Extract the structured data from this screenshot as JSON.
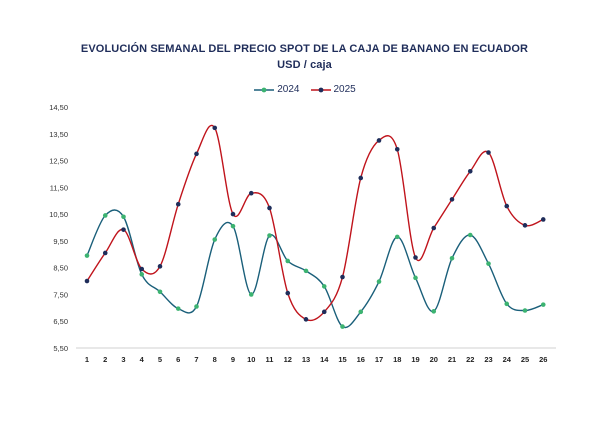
{
  "chart_data": {
    "type": "line",
    "title": "EVOLUCIÓN SEMANAL DEL PRECIO SPOT DE LA CAJA DE BANANO EN ECUADOR",
    "subtitle": "USD / caja",
    "xlabel": "",
    "ylabel": "",
    "legend_position": "top",
    "grid": false,
    "ylim": [
      5.5,
      14.5
    ],
    "y_ticks": [
      "5,50",
      "6,50",
      "7,50",
      "8,50",
      "9,50",
      "10,50",
      "11,50",
      "12,50",
      "13,50",
      "14,50"
    ],
    "categories": [
      "1",
      "2",
      "3",
      "4",
      "5",
      "6",
      "7",
      "8",
      "9",
      "10",
      "11",
      "12",
      "13",
      "14",
      "15",
      "16",
      "17",
      "18",
      "19",
      "20",
      "21",
      "22",
      "23",
      "24",
      "25",
      "26"
    ],
    "series": [
      {
        "name": "2024",
        "line_color": "#1a5f7a",
        "marker_color": "#3cb371",
        "values": [
          8.95,
          10.45,
          10.4,
          8.25,
          7.6,
          6.97,
          7.05,
          9.55,
          10.05,
          7.5,
          9.7,
          8.75,
          8.38,
          7.8,
          6.3,
          6.85,
          7.98,
          9.65,
          8.12,
          6.87,
          8.85,
          9.72,
          8.65,
          7.15,
          6.9,
          7.12
        ]
      },
      {
        "name": "2025",
        "line_color": "#c0141c",
        "marker_color": "#1f2d5a",
        "values": [
          8.0,
          9.05,
          9.92,
          8.45,
          8.55,
          10.87,
          12.75,
          13.72,
          10.5,
          11.28,
          10.73,
          7.55,
          6.57,
          6.85,
          8.15,
          11.85,
          13.25,
          12.92,
          8.88,
          9.98,
          11.05,
          12.1,
          12.8,
          10.8,
          10.08,
          10.3
        ]
      }
    ]
  }
}
